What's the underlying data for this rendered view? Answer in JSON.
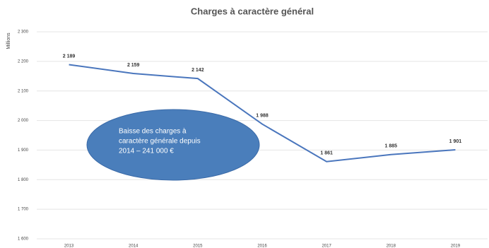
{
  "chart_data": {
    "type": "line",
    "title": "Charges à caractère général",
    "y_axis_label": "Millions",
    "categories": [
      "2013",
      "2014",
      "2015",
      "2016",
      "2017",
      "2018",
      "2019"
    ],
    "series": [
      {
        "name": "Charges à caractère général",
        "color": "#4a76bd",
        "values": [
          2189,
          2159,
          2142,
          1988,
          1861,
          1885,
          1901
        ],
        "value_labels": [
          "2 189",
          "2 159",
          "2 142",
          "1 988",
          "1 861",
          "1 885",
          "1 901"
        ]
      }
    ],
    "ylim": [
      1600,
      2300
    ],
    "yticks": [
      {
        "value": 1600,
        "label": "1 600"
      },
      {
        "value": 1700,
        "label": "1 700"
      },
      {
        "value": 1800,
        "label": "1 800"
      },
      {
        "value": 1900,
        "label": "1 900"
      },
      {
        "value": 2000,
        "label": "2 000"
      },
      {
        "value": 2100,
        "label": "2 100"
      },
      {
        "value": 2200,
        "label": "2 200"
      },
      {
        "value": 2300,
        "label": "2 300"
      }
    ],
    "grid": true,
    "annotation": {
      "lines": [
        "Baisse des charges à",
        "caractère générale depuis",
        "2014 – 241 000 €"
      ],
      "color": "#4a7ebb"
    }
  }
}
